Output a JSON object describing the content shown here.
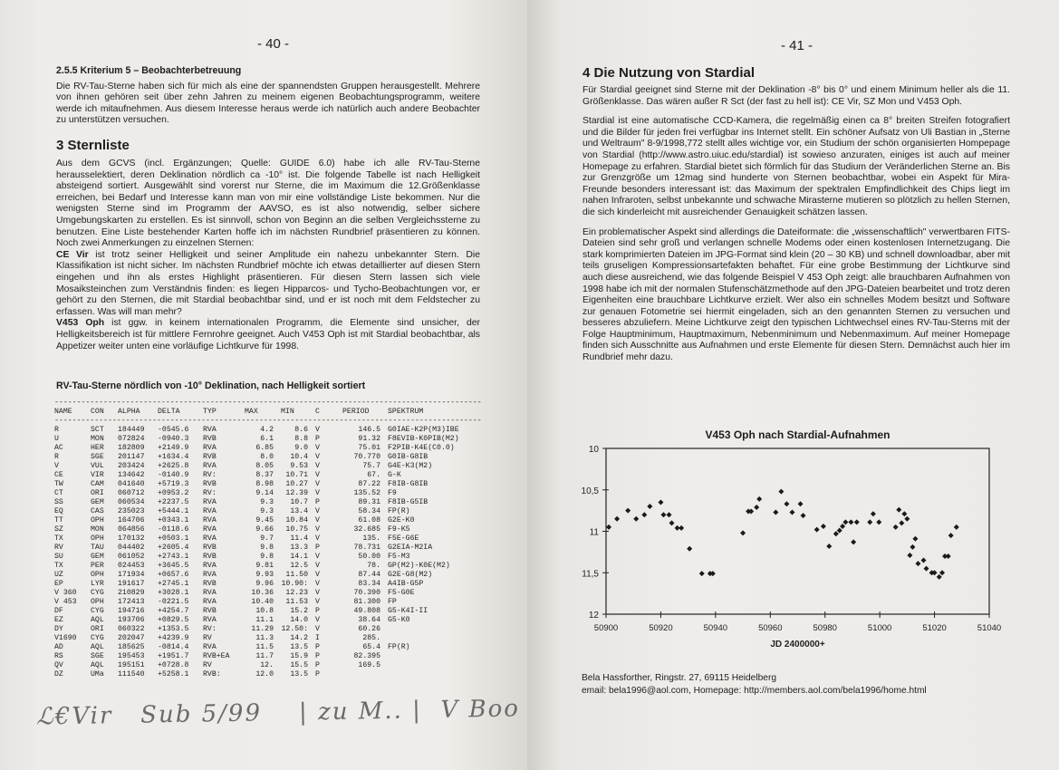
{
  "left_page": {
    "page_number": "- 40 -",
    "section_255_title": "2.5.5  Kriterium 5 – Beobachterbetreuung",
    "section_255_text": "Die RV-Tau-Sterne haben sich für mich als eine der spannendsten Gruppen herausgestellt. Mehrere von ihnen gehören seit über zehn Jahren zu meinem eigenen Beobachtungsprogramm, weitere werde ich mitaufnehmen. Aus diesem Interesse heraus werde ich natürlich auch andere Beobachter zu unterstützen versuchen.",
    "section_3_title": "3  Sternliste",
    "section_3_text": "Aus dem GCVS (incl. Ergänzungen; Quelle: GUIDE 6.0) habe ich alle RV-Tau-Sterne herausselektiert, deren Deklination nördlich ca -10° ist. Die folgende Tabelle ist nach Helligkeit absteigend sortiert. Ausgewählt sind vorerst nur Sterne, die im Maximum die 12.Größenklasse erreichen, bei Bedarf und Interesse kann man von mir eine vollständige Liste bekommen. Nur die wenigsten Sterne sind im Programm der AAVSO, es ist also notwendig, selber sichere Umgebungskarten zu erstellen. Es ist sinnvoll, schon von Beginn an die selben Vergleichssterne zu benutzen. Eine Liste bestehender Karten hoffe ich im nächsten Rundbrief präsentieren zu können. Noch zwei Anmerkungen zu einzelnen Sternen:",
    "ce_vir_label": "CE Vir",
    "ce_vir_text": " ist trotz seiner Helligkeit und seiner Amplitude ein nahezu unbekannter Stern. Die Klassifikation ist nicht sicher. Im nächsten Rundbrief möchte ich etwas detaillierter auf diesen Stern eingehen und ihn als erstes Highlight präsentieren. Für diesen Stern lassen sich viele Mosaiksteinchen zum Verständnis finden: es liegen Hipparcos- und Tycho-Beobachtungen vor, er gehört zu den Sternen, die mit Stardial beobachtbar sind, und er ist noch mit dem Feldstecher zu erfassen. Was will man mehr?",
    "v453_label": "V453 Oph",
    "v453_text": " ist ggw. in keinem internationalen Programm, die Elemente sind unsicher, der Helligkeitsbereich ist für mittlere Fernrohre geeignet. Auch V453 Oph ist mit Stardial beobachtbar, als Appetizer weiter unten eine vorläufige Lichtkurve für 1998.",
    "table_title": "RV-Tau-Sterne nördlich von -10° Deklination, nach Helligkeit sortiert",
    "table": {
      "columns": [
        "NAME",
        "CON",
        "ALPHA",
        "DELTA",
        "TYP",
        "MAX",
        "MIN",
        "C",
        "PERIOD",
        "SPEKTRUM"
      ],
      "rows": [
        [
          "R",
          "SCT",
          "184449",
          "-0545.6",
          "RVA",
          "4.2",
          "8.6",
          "V",
          "146.5",
          "G0IAE-K2P(M3)IBE"
        ],
        [
          "U",
          "MON",
          "072824",
          "-0940.3",
          "RVB",
          "6.1",
          "8.8",
          "P",
          "91.32",
          "F8EVIB-K0PIB(M2)"
        ],
        [
          "AC",
          "HER",
          "182809",
          "+2149.9",
          "RVA",
          "6.85",
          "9.0",
          "V",
          "75.01",
          "F2PIB-K4E(C0.0)"
        ],
        [
          "R",
          "SGE",
          "201147",
          "+1634.4",
          "RVB",
          "8.0",
          "10.4",
          "V",
          "70.770",
          "G0IB-G8IB"
        ],
        [
          "V",
          "VUL",
          "203424",
          "+2625.8",
          "RVA",
          "8.05",
          "9.53",
          "V",
          "75.7",
          "G4E-K3(M2)"
        ],
        [
          "CE",
          "VIR",
          "134642",
          "-0140.9",
          "RV:",
          "8.37",
          "10.71",
          "V",
          "67.",
          "G-K"
        ],
        [
          "TW",
          "CAM",
          "041640",
          "+5719.3",
          "RVB",
          "8.98",
          "10.27",
          "V",
          "87.22",
          "F8IB-G8IB"
        ],
        [
          "CT",
          "ORI",
          "060712",
          "+0953.2",
          "RV:",
          "9.14",
          "12.39",
          "V",
          "135.52",
          "F9"
        ],
        [
          "SS",
          "GEM",
          "060534",
          "+2237.5",
          "RVA",
          "9.3",
          "10.7",
          "P",
          "89.31",
          "F8IB-G5IB"
        ],
        [
          "EQ",
          "CAS",
          "235023",
          "+5444.1",
          "RVA",
          "9.3",
          "13.4",
          "V",
          "58.34",
          "FP(R)"
        ],
        [
          "TT",
          "OPH",
          "164706",
          "+0343.1",
          "RVA",
          "9.45",
          "10.84",
          "V",
          "61.08",
          "G2E-K0"
        ],
        [
          "SZ",
          "MON",
          "064856",
          "-0118.6",
          "RVA",
          "9.66",
          "10.75",
          "V",
          "32.685",
          "F9-K5"
        ],
        [
          "TX",
          "OPH",
          "170132",
          "+0503.1",
          "RVA",
          "9.7",
          "11.4",
          "V",
          "135.",
          "F5E-G6E"
        ],
        [
          "RV",
          "TAU",
          "044402",
          "+2605.4",
          "RVB",
          "9.8",
          "13.3",
          "P",
          "78.731",
          "G2EIA-M2IA"
        ],
        [
          "SU",
          "GEM",
          "061052",
          "+2743.1",
          "RVB",
          "9.8",
          "14.1",
          "V",
          "50.00",
          "F5-M3"
        ],
        [
          "TX",
          "PER",
          "024453",
          "+3645.5",
          "RVA",
          "9.81",
          "12.5",
          "V",
          "78.",
          "GP(M2)-K0E(M2)"
        ],
        [
          "UZ",
          "OPH",
          "171934",
          "+0657.6",
          "RVA",
          "9.93",
          "11.50",
          "V",
          "87.44",
          "G2E-G8(M2)"
        ],
        [
          "EP",
          "LYR",
          "191617",
          "+2745.1",
          "RVB",
          "9.96",
          "10.90:",
          "V",
          "83.34",
          "A4IB-G5P"
        ],
        [
          "V 360",
          "CYG",
          "210829",
          "+3028.1",
          "RVA",
          "10.36",
          "12.23",
          "V",
          "70.390",
          "F5-G0E"
        ],
        [
          "V 453",
          "OPH",
          "172413",
          "-0221.5",
          "RVA",
          "10.40",
          "11.53",
          "V",
          "81.300",
          "FP"
        ],
        [
          "DF",
          "CYG",
          "194716",
          "+4254.7",
          "RVB",
          "10.8",
          "15.2",
          "P",
          "49.808",
          "G5-K4I-II"
        ],
        [
          "EZ",
          "AQL",
          "193706",
          "+0829.5",
          "RVA",
          "11.1",
          "14.0",
          "V",
          "38.64",
          "G5-K0"
        ],
        [
          "DY",
          "ORI",
          "060322",
          "+1353.5",
          "RV:",
          "11.29",
          "12.50:",
          "V",
          "60.26",
          ""
        ],
        [
          "V1690",
          "CYG",
          "202047",
          "+4239.9",
          "RV",
          "11.3",
          "14.2",
          "I",
          "285.",
          ""
        ],
        [
          "AD",
          "AQL",
          "185625",
          "-0814.4",
          "RVA",
          "11.5",
          "13.5",
          "P",
          "65.4",
          "FP(R)"
        ],
        [
          "RS",
          "SGE",
          "195453",
          "+1951.7",
          "RVB+EA",
          "11.7",
          "15.9",
          "P",
          "82.395",
          ""
        ],
        [
          "QV",
          "AQL",
          "195151",
          "+0728.8",
          "RV",
          "12.",
          "15.5",
          "P",
          "169.5",
          ""
        ],
        [
          "DZ",
          "UMa",
          "111540",
          "+5258.1",
          "RVB:",
          "12.0",
          "13.5",
          "P",
          "",
          ""
        ]
      ]
    },
    "handwritten_note": "CEVir Sub 5/99 | zu M.. | V Boo"
  },
  "right_page": {
    "page_number": "- 41 -",
    "section_4_title": "4  Die Nutzung von Stardial",
    "para1": "Für Stardial geeignet sind Sterne mit der Deklination -8° bis 0° und einem Minimum heller als die 11. Größenklasse. Das wären außer R Sct (der fast zu hell ist): CE Vir, SZ Mon und V453 Oph.",
    "para2": "Stardial ist eine automatische CCD-Kamera, die regelmäßig einen ca 8° breiten Streifen fotografiert und die Bilder für jeden frei verfügbar ins Internet stellt. Ein schöner Aufsatz von Uli Bastian in „Sterne und Weltraum\" 8-9/1998,772  stellt alles wichtige vor, ein Studium der schön organisierten Hompepage von Stardial (http://www.astro.uiuc.edu/stardial) ist sowieso anzuraten, einiges ist auch auf meiner Homepage zu erfahren. Stardial bietet sich förmlich für das Studium der Veränderlichen Sterne an. Bis zur Grenzgröße um 12mag sind hunderte von Sternen beobachtbar, wobei ein Aspekt für Mira-Freunde besonders interessant ist: das Maximum der spektralen Empfindlichkeit des Chips liegt im nahen Infraroten, selbst unbekannte und schwache Mirasterne mutieren so plötzlich zu hellen Sternen, die sich kinderleicht mit ausreichender Genauigkeit schätzen lassen.",
    "para3": "Ein problematischer Aspekt sind allerdings die Dateiformate: die „wissenschaftlich\" verwertbaren FITS-Dateien sind sehr groß und verlangen schnelle Modems oder einen kostenlosen Internetzugang. Die stark komprimierten Dateien im JPG-Format sind klein (20 – 30 KB) und schnell downloadbar, aber mit teils gruseligen Kompressionsartefakten behaftet. Für eine grobe Bestimmung der Lichtkurve sind auch diese ausreichend, wie das folgende Beispiel V 453 Oph zeigt: alle brauchbaren Aufnahmen von 1998 habe ich mit der normalen Stufenschätzmethode auf den JPG-Dateien bearbeitet und trotz deren Eigenheiten eine brauchbare Lichtkurve erzielt. Wer also ein schnelles Modem besitzt und Software zur genauen Fotometrie sei hiermit eingeladen, sich an den genannten Sternen zu versuchen und besseres abzuliefern. Meine Lichtkurve zeigt den typischen Lichtwechsel eines RV-Tau-Sterns mit der Folge Hauptminimum, Hauptmaximum, Nebenminimum und Nebenmaximum. Auf meiner Homepage finden sich Ausschnitte aus Aufnahmen und erste Elemente für diesen Stern. Demnächst auch hier im Rundbrief mehr dazu.",
    "footer_address": "Bela Hassforther, Ringstr. 27, 69115 Heidelberg",
    "footer_contact": "email: bela1996@aol.com, Homepage: http://members.aol.com/bela1996/home.html"
  },
  "chart_data": {
    "type": "scatter",
    "title": "V453 Oph nach Stardial-Aufnahmen",
    "xlabel": "JD 2400000+",
    "ylabel": "",
    "xlim": [
      50900,
      51040
    ],
    "ylim": [
      10,
      12
    ],
    "y_reversed": true,
    "xticks": [
      "50900",
      "50920",
      "50940",
      "50960",
      "50980",
      "51000",
      "51020",
      "51040"
    ],
    "yticks": [
      "10",
      "10,5",
      "11",
      "11,5",
      "12"
    ],
    "grid": false,
    "marker": "diamond",
    "marker_color": "#1a1a1a",
    "points": [
      [
        50901,
        10.95
      ],
      [
        50904,
        10.85
      ],
      [
        50908,
        10.75
      ],
      [
        50911,
        10.85
      ],
      [
        50914,
        10.8
      ],
      [
        50916,
        10.7
      ],
      [
        50920,
        10.65
      ],
      [
        50921,
        10.8
      ],
      [
        50923,
        10.8
      ],
      [
        50924,
        10.9
      ],
      [
        50926,
        10.96
      ],
      [
        50927.5,
        10.96
      ],
      [
        50930.5,
        11.21
      ],
      [
        50935,
        11.51
      ],
      [
        50938,
        11.51
      ],
      [
        50939,
        11.51
      ],
      [
        50950,
        11.02
      ],
      [
        50952,
        10.76
      ],
      [
        50953,
        10.76
      ],
      [
        50955,
        10.71
      ],
      [
        50956,
        10.61
      ],
      [
        50962,
        10.77
      ],
      [
        50964,
        10.52
      ],
      [
        50966,
        10.67
      ],
      [
        50968,
        10.77
      ],
      [
        50971,
        10.67
      ],
      [
        50972,
        10.81
      ],
      [
        50977,
        10.98
      ],
      [
        50979.4,
        10.94
      ],
      [
        50981.5,
        11.18
      ],
      [
        50984,
        11.03
      ],
      [
        50985.3,
        10.99
      ],
      [
        50986.4,
        10.94
      ],
      [
        50987.5,
        10.89
      ],
      [
        50989.5,
        10.89
      ],
      [
        50990.4,
        11.13
      ],
      [
        50991.6,
        10.89
      ],
      [
        50996.4,
        10.89
      ],
      [
        50997.6,
        10.79
      ],
      [
        50999.7,
        10.89
      ],
      [
        51005.8,
        10.95
      ],
      [
        51007,
        10.74
      ],
      [
        51008,
        10.9
      ],
      [
        51009,
        10.79
      ],
      [
        51010,
        10.85
      ],
      [
        51011,
        11.29
      ],
      [
        51012,
        11.19
      ],
      [
        51013,
        11.09
      ],
      [
        51014,
        11.39
      ],
      [
        51016,
        11.35
      ],
      [
        51017,
        11.45
      ],
      [
        51019,
        11.5
      ],
      [
        51020,
        11.5
      ],
      [
        51021.7,
        11.55
      ],
      [
        51022.8,
        11.5
      ],
      [
        51023.8,
        11.3
      ],
      [
        51025,
        11.3
      ],
      [
        51026,
        11.05
      ],
      [
        51028,
        10.95
      ]
    ]
  }
}
